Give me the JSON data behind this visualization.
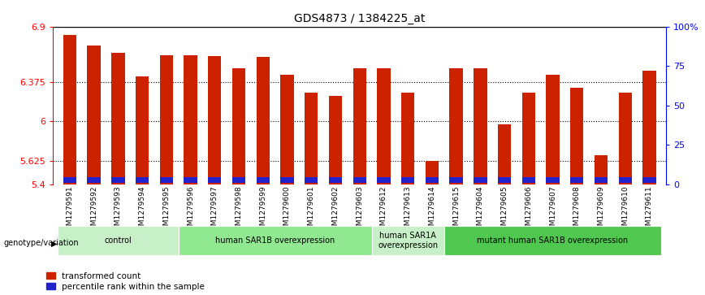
{
  "title": "GDS4873 / 1384225_at",
  "samples": [
    "GSM1279591",
    "GSM1279592",
    "GSM1279593",
    "GSM1279594",
    "GSM1279595",
    "GSM1279596",
    "GSM1279597",
    "GSM1279598",
    "GSM1279599",
    "GSM1279600",
    "GSM1279601",
    "GSM1279602",
    "GSM1279603",
    "GSM1279612",
    "GSM1279613",
    "GSM1279614",
    "GSM1279615",
    "GSM1279604",
    "GSM1279605",
    "GSM1279606",
    "GSM1279607",
    "GSM1279608",
    "GSM1279609",
    "GSM1279610",
    "GSM1279611"
  ],
  "red_values": [
    6.82,
    6.72,
    6.65,
    6.43,
    6.63,
    6.63,
    6.62,
    6.5,
    6.61,
    6.44,
    6.27,
    6.24,
    6.5,
    6.5,
    6.27,
    5.62,
    6.5,
    6.5,
    5.97,
    6.27,
    6.44,
    6.32,
    5.68,
    6.27,
    6.48
  ],
  "blue_heights": [
    0.055,
    0.055,
    0.055,
    0.055,
    0.055,
    0.055,
    0.055,
    0.055,
    0.055,
    0.055,
    0.055,
    0.055,
    0.055,
    0.055,
    0.055,
    0.055,
    0.055,
    0.055,
    0.055,
    0.055,
    0.055,
    0.055,
    0.055,
    0.055,
    0.055
  ],
  "groups": [
    {
      "label": "control",
      "start": 0,
      "end": 5,
      "color": "#c8f0c8"
    },
    {
      "label": "human SAR1B overexpression",
      "start": 5,
      "end": 13,
      "color": "#90e890"
    },
    {
      "label": "human SAR1A\noverexpression",
      "start": 13,
      "end": 16,
      "color": "#c8f0c8"
    },
    {
      "label": "mutant human SAR1B overexpression",
      "start": 16,
      "end": 25,
      "color": "#50c850"
    }
  ],
  "ymin": 5.4,
  "ymax": 6.9,
  "yticks": [
    5.4,
    5.625,
    6.0,
    6.375,
    6.9
  ],
  "ytick_labels": [
    "5.4",
    "5.625",
    "6",
    "6.375",
    "6.9"
  ],
  "right_yticks": [
    0,
    25,
    50,
    75,
    100
  ],
  "right_ytick_labels": [
    "0",
    "25",
    "50",
    "75",
    "100%"
  ],
  "bar_color_red": "#cc2200",
  "bar_color_blue": "#2222cc",
  "bar_width": 0.55,
  "bg_color": "#ffffff",
  "plot_bg": "#ffffff",
  "grid_dotted": [
    5.625,
    6.0,
    6.375
  ],
  "legend_label_red": "transformed count",
  "legend_label_blue": "percentile rank within the sample",
  "genotype_label": "genotype/variation"
}
